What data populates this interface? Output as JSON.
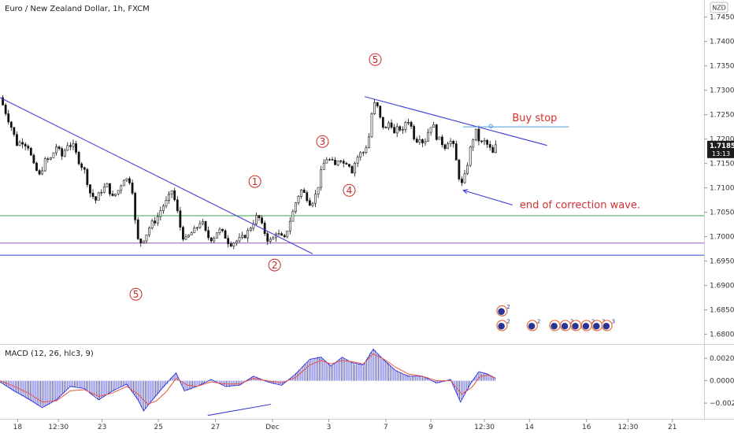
{
  "chart_data": {
    "type": "candlestick",
    "title": "Euro / New Zealand Dollar, 1h, FXCM",
    "currency": "NZD",
    "price_axis": {
      "ticks": [
        1.745,
        1.74,
        1.735,
        1.73,
        1.725,
        1.72,
        1.715,
        1.71,
        1.705,
        1.7,
        1.695,
        1.69,
        1.685,
        1.68
      ],
      "labels": [
        "1.74500",
        "1.74000",
        "1.73500",
        "1.73000",
        "1.72500",
        "1.72000",
        "1.71500",
        "1.71000",
        "1.70500",
        "1.70000",
        "1.69500",
        "1.69000",
        "1.68500",
        "1.68000"
      ],
      "range": [
        1.678,
        1.7485
      ]
    },
    "time_axis": {
      "range": [
        0,
        1000
      ],
      "ticks": [
        {
          "t": 25,
          "label": "18"
        },
        {
          "t": 83,
          "label": "12:30"
        },
        {
          "t": 145,
          "label": "23"
        },
        {
          "t": 225,
          "label": "25"
        },
        {
          "t": 306,
          "label": "27"
        },
        {
          "t": 387,
          "label": "Dec"
        },
        {
          "t": 467,
          "label": "3"
        },
        {
          "t": 548,
          "label": "7"
        },
        {
          "t": 612,
          "label": "9"
        },
        {
          "t": 688,
          "label": "12:30"
        },
        {
          "t": 752,
          "label": "14"
        },
        {
          "t": 833,
          "label": "16"
        },
        {
          "t": 892,
          "label": "12:30"
        },
        {
          "t": 955,
          "label": "21"
        }
      ]
    },
    "current_price": {
      "value": 1.71852,
      "label": "1.71852",
      "countdown": "13:13"
    },
    "path": [
      [
        0,
        1.7285
      ],
      [
        8,
        1.7255
      ],
      [
        16,
        1.7225
      ],
      [
        24,
        1.719
      ],
      [
        32,
        1.7195
      ],
      [
        40,
        1.7185
      ],
      [
        48,
        1.7145
      ],
      [
        56,
        1.7125
      ],
      [
        64,
        1.7155
      ],
      [
        72,
        1.716
      ],
      [
        80,
        1.7185
      ],
      [
        88,
        1.7165
      ],
      [
        96,
        1.719
      ],
      [
        104,
        1.7185
      ],
      [
        112,
        1.7155
      ],
      [
        120,
        1.7135
      ],
      [
        128,
        1.709
      ],
      [
        136,
        1.7075
      ],
      [
        144,
        1.7095
      ],
      [
        152,
        1.7105
      ],
      [
        160,
        1.708
      ],
      [
        168,
        1.7095
      ],
      [
        176,
        1.712
      ],
      [
        184,
        1.7115
      ],
      [
        190,
        1.7085
      ],
      [
        193,
        1.7005
      ],
      [
        198,
        1.6985
      ],
      [
        206,
        1.7
      ],
      [
        214,
        1.7025
      ],
      [
        222,
        1.7035
      ],
      [
        230,
        1.706
      ],
      [
        238,
        1.7075
      ],
      [
        244,
        1.7095
      ],
      [
        250,
        1.7065
      ],
      [
        256,
        1.702
      ],
      [
        262,
        1.699
      ],
      [
        270,
        1.7005
      ],
      [
        278,
        1.7015
      ],
      [
        286,
        1.7035
      ],
      [
        294,
        1.7
      ],
      [
        302,
        1.6995
      ],
      [
        310,
        1.7015
      ],
      [
        318,
        1.7005
      ],
      [
        326,
        1.6985
      ],
      [
        334,
        1.699
      ],
      [
        342,
        1.6995
      ],
      [
        350,
        1.7005
      ],
      [
        358,
        1.7025
      ],
      [
        366,
        1.7045
      ],
      [
        374,
        1.7015
      ],
      [
        380,
        1.6995
      ],
      [
        386,
        1.699
      ],
      [
        392,
        1.701
      ],
      [
        398,
        1.7
      ],
      [
        404,
        1.6995
      ],
      [
        410,
        1.7025
      ],
      [
        416,
        1.705
      ],
      [
        422,
        1.708
      ],
      [
        428,
        1.7095
      ],
      [
        434,
        1.7085
      ],
      [
        440,
        1.707
      ],
      [
        446,
        1.7075
      ],
      [
        452,
        1.7105
      ],
      [
        458,
        1.7145
      ],
      [
        464,
        1.716
      ],
      [
        470,
        1.7155
      ],
      [
        476,
        1.7145
      ],
      [
        482,
        1.7165
      ],
      [
        488,
        1.715
      ],
      [
        494,
        1.7155
      ],
      [
        500,
        1.7135
      ],
      [
        506,
        1.716
      ],
      [
        512,
        1.717
      ],
      [
        518,
        1.7175
      ],
      [
        524,
        1.7205
      ],
      [
        530,
        1.7275
      ],
      [
        536,
        1.7265
      ],
      [
        542,
        1.723
      ],
      [
        548,
        1.722
      ],
      [
        554,
        1.724
      ],
      [
        560,
        1.721
      ],
      [
        566,
        1.7225
      ],
      [
        572,
        1.7215
      ],
      [
        578,
        1.7245
      ],
      [
        584,
        1.7225
      ],
      [
        590,
        1.7195
      ],
      [
        596,
        1.7205
      ],
      [
        602,
        1.719
      ],
      [
        608,
        1.7215
      ],
      [
        614,
        1.7235
      ],
      [
        620,
        1.7205
      ],
      [
        626,
        1.7195
      ],
      [
        632,
        1.7185
      ],
      [
        638,
        1.72
      ],
      [
        644,
        1.7185
      ],
      [
        650,
        1.714
      ],
      [
        654,
        1.7105
      ],
      [
        658,
        1.711
      ],
      [
        664,
        1.715
      ],
      [
        670,
        1.7195
      ],
      [
        676,
        1.7215
      ],
      [
        682,
        1.719
      ],
      [
        688,
        1.7195
      ],
      [
        694,
        1.7185
      ],
      [
        700,
        1.717
      ],
      [
        704,
        1.7185
      ]
    ],
    "trendlines": [
      {
        "from": [
          0,
          1.7285
        ],
        "to": [
          444,
          1.6965
        ],
        "color": "#3f3fd6"
      },
      {
        "from": [
          518,
          1.7287
        ],
        "to": [
          777,
          1.7187
        ],
        "color": "#3f3fd6"
      }
    ],
    "horizontal_lines": [
      {
        "value": 1.7043,
        "color": "#3aa655"
      },
      {
        "value": 1.6987,
        "color": "#9b59b6"
      },
      {
        "value": 1.6962,
        "color": "#3f3fd6"
      }
    ],
    "buy_stop": {
      "value": 1.7225,
      "from": 658,
      "to": 808,
      "color": "#4a9de0",
      "label": "Buy stop"
    },
    "end_note": {
      "label": "end of correction wave.",
      "arrow_from": [
        728,
        1.7065
      ],
      "arrow_to": [
        658,
        1.7095
      ]
    },
    "wave_labels": [
      {
        "text": "5",
        "t": 193,
        "p": 1.6882
      },
      {
        "text": "1",
        "t": 362,
        "p": 1.7113
      },
      {
        "text": "2",
        "t": 390,
        "p": 1.6942
      },
      {
        "text": "3",
        "t": 458,
        "p": 1.7195
      },
      {
        "text": "4",
        "t": 496,
        "p": 1.7095
      },
      {
        "text": "5",
        "t": 533,
        "p": 1.7363
      }
    ],
    "event_icons": [
      {
        "t": 713,
        "p": 1.6848,
        "tag": "2"
      },
      {
        "t": 713,
        "p": 1.6818,
        "tag": "2"
      },
      {
        "t": 756,
        "p": 1.6818,
        "tag": "2"
      },
      {
        "t": 788,
        "p": 1.6818,
        "tag": ""
      },
      {
        "t": 803,
        "p": 1.6818,
        "tag": "2"
      },
      {
        "t": 818,
        "p": 1.6818,
        "tag": ""
      },
      {
        "t": 833,
        "p": 1.6818,
        "tag": "2"
      },
      {
        "t": 848,
        "p": 1.6818,
        "tag": "3"
      },
      {
        "t": 862,
        "p": 1.6818,
        "tag": "3"
      }
    ],
    "macd": {
      "title": "MACD (12, 26, hlc3, 9)",
      "axis_ticks": [
        0.002,
        0.0,
        -0.002
      ],
      "axis_labels": [
        "0.00200",
        "0.00000",
        "−0.00200"
      ],
      "range": [
        -0.0034,
        0.0032
      ],
      "macd_line": [
        [
          0,
          -0.0001
        ],
        [
          20,
          -0.0009
        ],
        [
          40,
          -0.0016
        ],
        [
          60,
          -0.0024
        ],
        [
          80,
          -0.0017
        ],
        [
          100,
          -0.0005
        ],
        [
          120,
          -0.0007
        ],
        [
          140,
          -0.0017
        ],
        [
          160,
          -0.0009
        ],
        [
          180,
          -0.0003
        ],
        [
          196,
          -0.0017
        ],
        [
          204,
          -0.0027
        ],
        [
          214,
          -0.0019
        ],
        [
          230,
          -0.0007
        ],
        [
          250,
          0.0007
        ],
        [
          262,
          -0.0009
        ],
        [
          280,
          -0.0005
        ],
        [
          300,
          0.0001
        ],
        [
          320,
          -0.0005
        ],
        [
          340,
          -0.0004
        ],
        [
          360,
          0.0004
        ],
        [
          380,
          -0.0001
        ],
        [
          400,
          -0.0004
        ],
        [
          420,
          0.0006
        ],
        [
          440,
          0.0019
        ],
        [
          456,
          0.0021
        ],
        [
          470,
          0.0013
        ],
        [
          486,
          0.0021
        ],
        [
          500,
          0.0016
        ],
        [
          516,
          0.0014
        ],
        [
          530,
          0.0028
        ],
        [
          546,
          0.0018
        ],
        [
          562,
          0.0009
        ],
        [
          580,
          0.0004
        ],
        [
          600,
          0.0004
        ],
        [
          620,
          -0.0002
        ],
        [
          640,
          0.0001
        ],
        [
          654,
          -0.0019
        ],
        [
          668,
          -0.0003
        ],
        [
          680,
          0.0008
        ],
        [
          692,
          0.0006
        ],
        [
          704,
          0.0002
        ]
      ],
      "signal_line": [
        [
          0,
          0.0
        ],
        [
          20,
          -0.0005
        ],
        [
          40,
          -0.0011
        ],
        [
          60,
          -0.0019
        ],
        [
          80,
          -0.0018
        ],
        [
          100,
          -0.0009
        ],
        [
          120,
          -0.0008
        ],
        [
          140,
          -0.0014
        ],
        [
          160,
          -0.0011
        ],
        [
          180,
          -0.0005
        ],
        [
          196,
          -0.0012
        ],
        [
          210,
          -0.0021
        ],
        [
          222,
          -0.0018
        ],
        [
          236,
          -0.001
        ],
        [
          250,
          0.0002
        ],
        [
          266,
          -0.0004
        ],
        [
          280,
          -0.0005
        ],
        [
          300,
          -0.0001
        ],
        [
          320,
          -0.0003
        ],
        [
          340,
          -0.0003
        ],
        [
          360,
          0.0002
        ],
        [
          380,
          0.0
        ],
        [
          400,
          -0.0002
        ],
        [
          420,
          0.0003
        ],
        [
          440,
          0.0014
        ],
        [
          456,
          0.0018
        ],
        [
          470,
          0.0015
        ],
        [
          486,
          0.0018
        ],
        [
          500,
          0.0017
        ],
        [
          516,
          0.0015
        ],
        [
          530,
          0.0024
        ],
        [
          546,
          0.0019
        ],
        [
          562,
          0.0012
        ],
        [
          580,
          0.0006
        ],
        [
          600,
          0.0004
        ],
        [
          620,
          0.0
        ],
        [
          640,
          0.0
        ],
        [
          656,
          -0.0012
        ],
        [
          670,
          -0.0006
        ],
        [
          682,
          0.0004
        ],
        [
          694,
          0.0005
        ],
        [
          704,
          0.0002
        ]
      ],
      "annotation_line": {
        "from": [
          295,
          -0.0031
        ],
        "to": [
          385,
          -0.0021
        ],
        "color": "#3f3fd6"
      }
    }
  }
}
